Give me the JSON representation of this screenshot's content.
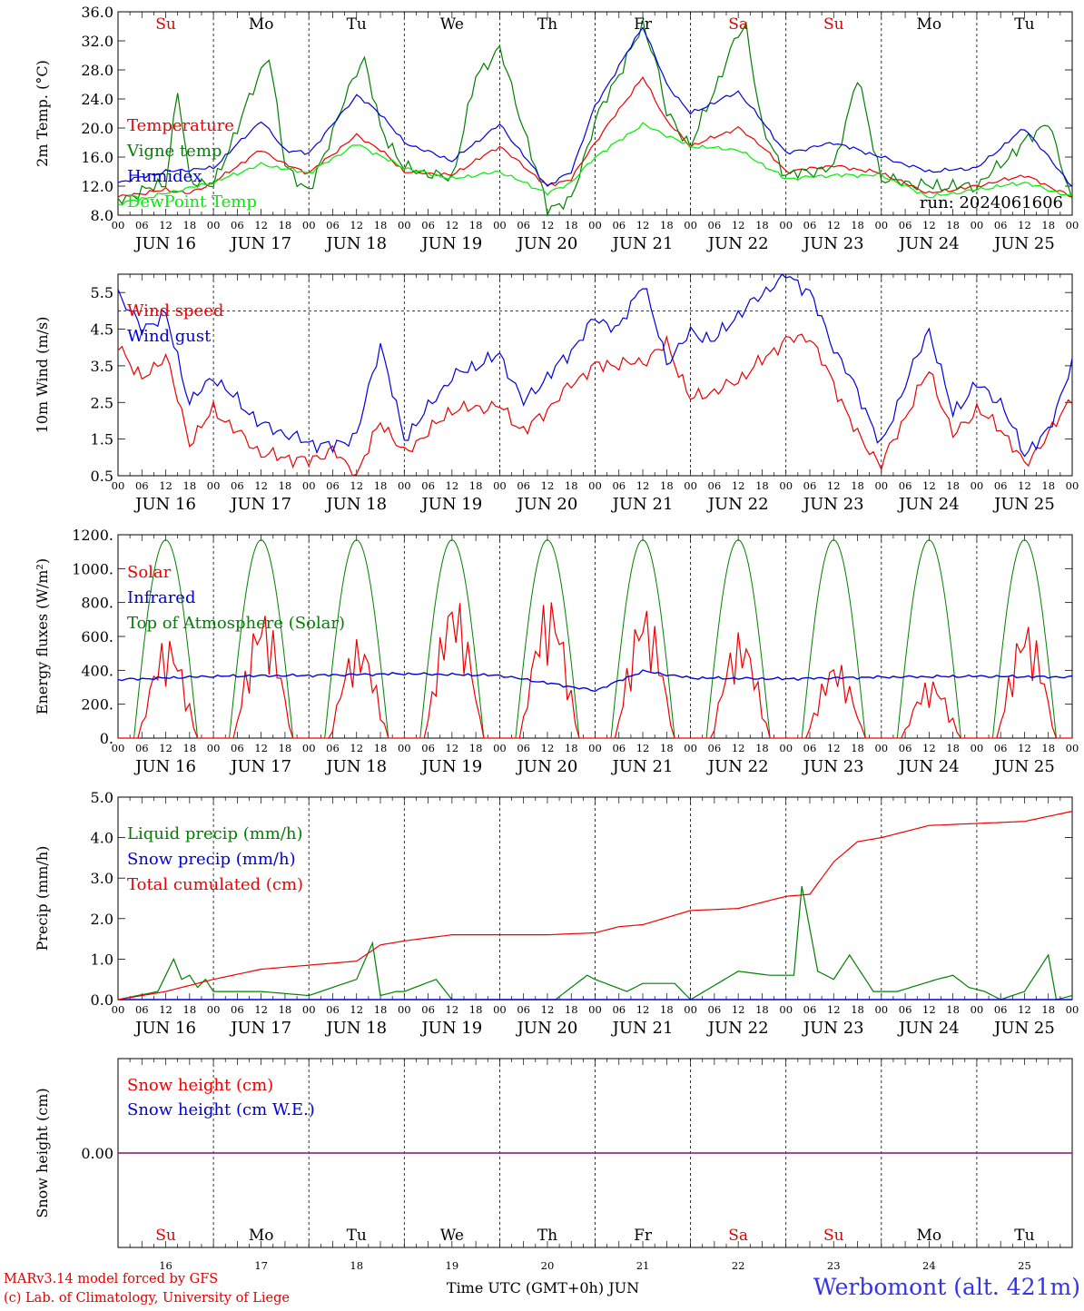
{
  "chart_data": [
    {
      "type": "line",
      "ylabel": "2m Temp. (°C)",
      "ylim": [
        8,
        36
      ],
      "yticks": [
        "8.0",
        "12.0",
        "16.0",
        "20.0",
        "24.0",
        "28.0",
        "32.0",
        "36.0"
      ],
      "annotation": "run: 2024061606",
      "weekday_labels": [
        "Su",
        "Mo",
        "Tu",
        "We",
        "Th",
        "Fr",
        "Sa",
        "Su",
        "Mo",
        "Tu"
      ],
      "weekday_colors": [
        "#e00000",
        "#000000",
        "#000000",
        "#000000",
        "#000000",
        "#000000",
        "#e00000",
        "#e00000",
        "#000000",
        "#000000"
      ],
      "x_unit": "hours since 2024-06-16 00 UTC",
      "series": [
        {
          "name": "Temperature",
          "color": "#ee0000",
          "x": [
            0,
            12,
            18,
            24,
            36,
            42,
            48,
            60,
            66,
            72,
            84,
            96,
            108,
            114,
            120,
            132,
            138,
            144,
            156,
            162,
            168,
            180,
            192,
            204,
            216,
            228,
            240
          ],
          "values": [
            10.5,
            11.5,
            11.0,
            12.5,
            17.0,
            15.0,
            13.8,
            19.0,
            17.0,
            14.0,
            13.5,
            17.5,
            12.0,
            13.0,
            18.0,
            27.0,
            21.0,
            17.5,
            20.0,
            17.5,
            14.0,
            14.8,
            13.8,
            11.0,
            12.0,
            13.5,
            10.5
          ]
        },
        {
          "name": "Vigne temp",
          "color": "#008000",
          "x": [
            0,
            12,
            15,
            18,
            24,
            36,
            38,
            42,
            48,
            60,
            62,
            66,
            72,
            84,
            90,
            96,
            108,
            114,
            120,
            132,
            135,
            138,
            144,
            156,
            158,
            162,
            168,
            180,
            186,
            192,
            204,
            216,
            228,
            234,
            236,
            240
          ],
          "values": [
            10.0,
            12.5,
            25.0,
            13.0,
            12.0,
            28.0,
            30.0,
            15.0,
            11.0,
            28.0,
            29.5,
            20.0,
            14.5,
            13.0,
            27.0,
            31.0,
            9.0,
            10.0,
            21.0,
            34.0,
            30.0,
            22.0,
            17.5,
            33.0,
            34.0,
            20.0,
            13.5,
            14.5,
            27.0,
            13.0,
            12.0,
            12.0,
            18.0,
            21.0,
            17.0,
            10.0
          ]
        },
        {
          "name": "Humidex",
          "color": "#0000dd",
          "x": [
            0,
            12,
            24,
            36,
            42,
            48,
            60,
            66,
            72,
            84,
            96,
            108,
            114,
            120,
            132,
            138,
            144,
            156,
            162,
            168,
            180,
            192,
            204,
            216,
            228,
            240
          ],
          "values": [
            12.5,
            14.0,
            14.5,
            21.0,
            17.0,
            16.5,
            24.5,
            22.0,
            18.0,
            15.5,
            20.5,
            12.0,
            14.0,
            23.0,
            34.0,
            26.0,
            22.0,
            25.0,
            21.0,
            16.5,
            18.0,
            16.0,
            14.0,
            14.5,
            20.0,
            12.0
          ]
        },
        {
          "name": "DewPoint Temp",
          "color": "#00ee00",
          "x": [
            0,
            12,
            24,
            36,
            48,
            60,
            72,
            84,
            96,
            108,
            114,
            120,
            132,
            144,
            156,
            168,
            180,
            192,
            204,
            216,
            228,
            240
          ],
          "values": [
            9.5,
            11.0,
            12.5,
            15.0,
            13.8,
            17.8,
            14.5,
            13.0,
            14.0,
            11.0,
            12.5,
            16.0,
            20.5,
            17.5,
            17.0,
            13.0,
            13.5,
            13.5,
            10.5,
            11.5,
            12.5,
            10.5
          ]
        }
      ]
    },
    {
      "type": "line",
      "ylabel": "10m Wind (m/s)",
      "ylim": [
        0.5,
        6.0
      ],
      "yticks": [
        "0.5",
        "1.5",
        "2.5",
        "3.5",
        "4.5",
        "5.5"
      ],
      "reference_line": 5.0,
      "series": [
        {
          "name": "Wind speed",
          "color": "#ee0000",
          "x": [
            0,
            6,
            12,
            18,
            24,
            36,
            48,
            54,
            60,
            66,
            72,
            84,
            96,
            102,
            108,
            114,
            120,
            132,
            138,
            144,
            150,
            156,
            168,
            174,
            180,
            186,
            192,
            204,
            210,
            216,
            222,
            228,
            234,
            240
          ],
          "values": [
            4.1,
            3.1,
            3.8,
            1.4,
            2.3,
            1.1,
            0.9,
            1.2,
            0.5,
            2.0,
            1.1,
            2.3,
            2.4,
            1.7,
            2.3,
            3.0,
            3.5,
            3.6,
            4.1,
            2.6,
            2.8,
            3.1,
            4.2,
            4.3,
            3.0,
            1.6,
            0.8,
            3.4,
            1.6,
            2.3,
            1.8,
            0.8,
            1.6,
            2.7
          ]
        },
        {
          "name": "Wind gust",
          "color": "#0000dd",
          "x": [
            0,
            6,
            12,
            18,
            24,
            36,
            48,
            54,
            60,
            66,
            72,
            84,
            96,
            102,
            108,
            114,
            120,
            126,
            132,
            138,
            144,
            150,
            156,
            168,
            174,
            180,
            186,
            192,
            198,
            204,
            210,
            216,
            222,
            228,
            234,
            240
          ],
          "values": [
            5.5,
            4.5,
            4.9,
            2.5,
            3.2,
            1.9,
            1.4,
            1.3,
            1.6,
            4.1,
            1.5,
            3.2,
            3.8,
            2.5,
            3.2,
            3.9,
            4.8,
            4.5,
            5.8,
            3.6,
            4.4,
            4.2,
            4.9,
            6.0,
            5.5,
            4.0,
            2.8,
            1.3,
            3.0,
            4.5,
            2.2,
            3.0,
            2.5,
            1.1,
            1.7,
            3.6
          ]
        }
      ]
    },
    {
      "type": "line",
      "ylabel": "Energy fluxes (W/m²)",
      "ylim": [
        0,
        1200
      ],
      "yticks": [
        "0.",
        "200.",
        "400.",
        "600.",
        "800.",
        "1000.",
        "1200."
      ],
      "series": [
        {
          "name": "Solar",
          "color": "#ee0000",
          "solar_peaks_per_day": [
            600,
            760,
            590,
            850,
            840,
            790,
            630,
            460,
            350,
            690
          ]
        },
        {
          "name": "Infrared",
          "color": "#0000dd",
          "x": [
            0,
            24,
            48,
            72,
            96,
            120,
            132,
            144,
            168,
            192,
            216,
            240
          ],
          "values": [
            345,
            365,
            370,
            380,
            370,
            280,
            395,
            355,
            350,
            360,
            365,
            360
          ]
        },
        {
          "name": "Top of Atmosphere (Solar)",
          "color": "#008000",
          "daily_peak": 1170,
          "sunrise_hour": 4,
          "sunset_hour": 20
        }
      ]
    },
    {
      "type": "line",
      "ylabel": "Precip (mm/h)",
      "ylim": [
        0,
        5
      ],
      "yticks": [
        "0.0",
        "1.0",
        "2.0",
        "3.0",
        "4.0",
        "5.0"
      ],
      "series": [
        {
          "name": "Liquid precip (mm/h)",
          "color": "#008000",
          "x": [
            0,
            10,
            14,
            16,
            18,
            20,
            22,
            24,
            36,
            48,
            60,
            64,
            66,
            70,
            72,
            80,
            84,
            90,
            96,
            110,
            118,
            120,
            128,
            132,
            140,
            144,
            156,
            164,
            170,
            172,
            176,
            180,
            184,
            190,
            196,
            206,
            210,
            214,
            218,
            222,
            228,
            234,
            236,
            240
          ],
          "values": [
            0,
            0.2,
            1.0,
            0.5,
            0.6,
            0.3,
            0.5,
            0.2,
            0.2,
            0.1,
            0.5,
            1.4,
            0.1,
            0.2,
            0.2,
            0.5,
            0,
            0,
            0,
            0,
            0.6,
            0.5,
            0.2,
            0.4,
            0.4,
            0,
            0.7,
            0.6,
            0.6,
            2.8,
            0.7,
            0.5,
            1.1,
            0.2,
            0.2,
            0.5,
            0.6,
            0.3,
            0.2,
            0,
            0.2,
            1.1,
            0,
            0.1
          ]
        },
        {
          "name": "Snow precip (mm/h)",
          "color": "#0000dd",
          "x": [
            0,
            240
          ],
          "values": [
            0,
            0
          ]
        },
        {
          "name": "Total cumulated (cm)",
          "color": "#ee0000",
          "x": [
            0,
            12,
            24,
            36,
            48,
            60,
            66,
            72,
            84,
            96,
            108,
            120,
            126,
            132,
            144,
            156,
            168,
            174,
            180,
            186,
            192,
            204,
            216,
            228,
            240
          ],
          "values": [
            0,
            0.2,
            0.5,
            0.75,
            0.85,
            0.95,
            1.35,
            1.45,
            1.6,
            1.6,
            1.6,
            1.65,
            1.8,
            1.85,
            2.2,
            2.25,
            2.55,
            2.6,
            3.4,
            3.9,
            4.0,
            4.3,
            4.35,
            4.4,
            4.65
          ]
        }
      ]
    },
    {
      "type": "line",
      "ylabel": "Snow height (cm)",
      "yticks": [
        "0.00"
      ],
      "series": [
        {
          "name": "Snow height (cm)",
          "color": "#ee0000",
          "x": [
            0,
            240
          ],
          "values": [
            0,
            0
          ]
        },
        {
          "name": "Snow height (cm W.E.)",
          "color": "#0000dd",
          "x": [
            0,
            240
          ],
          "values": [
            0,
            0
          ]
        }
      ],
      "weekday_labels": [
        "Su",
        "Mo",
        "Tu",
        "We",
        "Th",
        "Fr",
        "Sa",
        "Su",
        "Mo",
        "Tu"
      ],
      "day_numbers": [
        "16",
        "17",
        "18",
        "19",
        "20",
        "21",
        "22",
        "23",
        "24",
        "25"
      ]
    }
  ],
  "x_axis": {
    "hour_labels": [
      "00",
      "06",
      "12",
      "18"
    ],
    "end_label": "00",
    "day_labels": [
      "JUN 16",
      "JUN 17",
      "JUN 18",
      "JUN 19",
      "JUN 20",
      "JUN 21",
      "JUN 22",
      "JUN 23",
      "JUN 24",
      "JUN 25"
    ],
    "title": "Time UTC (GMT+0h) JUN"
  },
  "footer": {
    "model": "MARv3.14 model forced by GFS",
    "copyright": "(c) Lab. of Climatology, University of Liege",
    "station": "Werbomont (alt. 421m)",
    "model_color": "#e00000",
    "station_color": "#3333ee"
  }
}
